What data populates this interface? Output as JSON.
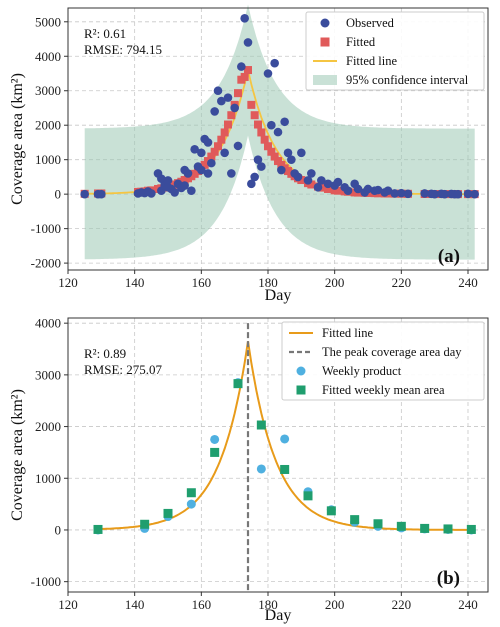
{
  "colors": {
    "observed": "#3a4c9c",
    "fitted_marker": "#e05a5a",
    "fitted_line_a": "#f5c542",
    "ci_fill": "#9cc8b5",
    "fitted_line_b": "#e89b1a",
    "peak_line": "#777777",
    "weekly_product": "#4fb0e0",
    "weekly_mean": "#1f9e6e"
  },
  "chart_data": [
    {
      "type": "scatter",
      "panel_label": "(a)",
      "xlabel": "Day",
      "ylabel": "Coverage area (km²)",
      "xlim": [
        120,
        246
      ],
      "ylim": [
        -2200,
        5400
      ],
      "xticks": [
        120,
        140,
        160,
        180,
        200,
        220,
        240
      ],
      "yticks": [
        -2000,
        -1000,
        0,
        1000,
        2000,
        3000,
        4000,
        5000
      ],
      "grid": true,
      "legend_position": "top-right",
      "annotations": [
        "R²: 0.61",
        "RMSE: 794.15"
      ],
      "legend": [
        "Observed",
        "Fitted",
        "Fitted line",
        "95% confidence interval"
      ],
      "fit": {
        "peak_day": 174,
        "peak_value": 3600,
        "rise_rate": 0.12,
        "fall_rate": 0.12,
        "x_start": 125,
        "x_end": 242
      },
      "confidence_interval": {
        "x_start": 125,
        "x_end": 242,
        "baseline_half_width": 1900,
        "peak_upper": 5500
      },
      "observed": {
        "x": [
          125,
          129,
          130,
          141,
          142,
          143,
          144,
          145,
          147,
          148,
          148,
          149,
          149,
          150,
          150,
          151,
          152,
          153,
          154,
          155,
          155,
          156,
          157,
          158,
          159,
          160,
          160,
          161,
          162,
          162,
          163,
          164,
          165,
          166,
          167,
          168,
          169,
          170,
          171,
          172,
          173,
          174,
          175,
          176,
          177,
          178,
          180,
          181,
          182,
          183,
          184,
          185,
          186,
          187,
          188,
          189,
          190,
          192,
          193,
          195,
          196,
          198,
          200,
          201,
          203,
          204,
          206,
          207,
          209,
          210,
          212,
          213,
          215,
          216,
          218,
          220,
          222,
          227,
          229,
          230,
          232,
          233,
          235,
          236,
          237,
          240,
          242
        ],
        "y": [
          0,
          0,
          0,
          20,
          50,
          30,
          80,
          20,
          600,
          450,
          100,
          350,
          250,
          200,
          400,
          150,
          50,
          300,
          180,
          700,
          250,
          600,
          100,
          1300,
          800,
          700,
          1200,
          1600,
          1500,
          600,
          900,
          2400,
          3000,
          2700,
          1200,
          2800,
          600,
          2500,
          1400,
          3700,
          5100,
          4400,
          300,
          500,
          1000,
          800,
          3500,
          2000,
          3800,
          1800,
          700,
          2100,
          1200,
          1000,
          600,
          500,
          1200,
          400,
          600,
          200,
          400,
          300,
          250,
          350,
          200,
          100,
          300,
          150,
          50,
          150,
          100,
          120,
          50,
          100,
          20,
          30,
          10,
          20,
          10,
          0,
          10,
          0,
          5,
          0,
          0,
          10,
          0
        ]
      },
      "fitted": {
        "x": [
          125,
          129,
          130,
          141,
          142,
          143,
          144,
          145,
          147,
          148,
          149,
          150,
          151,
          152,
          153,
          154,
          155,
          156,
          157,
          158,
          159,
          160,
          161,
          162,
          163,
          164,
          165,
          166,
          167,
          168,
          169,
          170,
          171,
          172,
          173,
          174,
          175,
          176,
          177,
          178,
          179,
          180,
          181,
          182,
          183,
          184,
          185,
          186,
          187,
          188,
          189,
          190,
          192,
          193,
          195,
          196,
          198,
          200,
          201,
          203,
          204,
          206,
          207,
          209,
          210,
          212,
          213,
          215,
          216,
          218,
          220,
          222,
          227,
          229,
          230,
          232,
          233,
          235,
          236,
          237,
          240,
          242
        ],
        "y": [
          10,
          20,
          20,
          65,
          70,
          80,
          100,
          110,
          150,
          170,
          190,
          220,
          250,
          280,
          320,
          360,
          410,
          460,
          520,
          590,
          670,
          750,
          850,
          960,
          1090,
          1230,
          1390,
          1580,
          1790,
          2020,
          2290,
          2590,
          2930,
          3320,
          3400,
          3600,
          2590,
          2290,
          2020,
          1790,
          1580,
          1390,
          1230,
          1090,
          960,
          850,
          750,
          670,
          590,
          520,
          460,
          410,
          320,
          280,
          220,
          190,
          150,
          110,
          100,
          80,
          70,
          50,
          45,
          40,
          35,
          30,
          25,
          20,
          18,
          15,
          12,
          10,
          5,
          4,
          4,
          3,
          3,
          2,
          2,
          2,
          1,
          1
        ]
      }
    },
    {
      "type": "scatter",
      "panel_label": "(b)",
      "xlabel": "Day",
      "ylabel": "Coverage area (km²)",
      "xlim": [
        120,
        246
      ],
      "ylim": [
        -1200,
        4100
      ],
      "xticks": [
        120,
        140,
        160,
        180,
        200,
        220,
        240
      ],
      "yticks": [
        -1000,
        0,
        1000,
        2000,
        3000,
        4000
      ],
      "grid": true,
      "legend_position": "top-right",
      "annotations": [
        "R²: 0.89",
        "RMSE: 275.07"
      ],
      "legend": [
        "Fitted line",
        "The peak coverage area day",
        "Weekly product",
        "Fitted weekly mean area"
      ],
      "peak_day": 174,
      "fit": {
        "peak_day": 174,
        "peak_value": 3650,
        "rise_rate": 0.12,
        "fall_rate": 0.12,
        "x_start": 129,
        "x_end": 242
      },
      "weekly_product": {
        "x": [
          129,
          143,
          150,
          157,
          164,
          171,
          178,
          185,
          192,
          199,
          206,
          213,
          220,
          227,
          234,
          241
        ],
        "y": [
          0,
          30,
          260,
          500,
          1750,
          2850,
          1180,
          1760,
          740,
          390,
          150,
          70,
          40,
          20,
          10,
          0
        ]
      },
      "weekly_mean": {
        "x": [
          129,
          143,
          150,
          157,
          164,
          171,
          178,
          185,
          192,
          199,
          206,
          213,
          220,
          227,
          234,
          241
        ],
        "y": [
          10,
          110,
          320,
          720,
          1500,
          2830,
          2030,
          1170,
          660,
          370,
          200,
          120,
          70,
          30,
          20,
          10
        ]
      }
    }
  ]
}
